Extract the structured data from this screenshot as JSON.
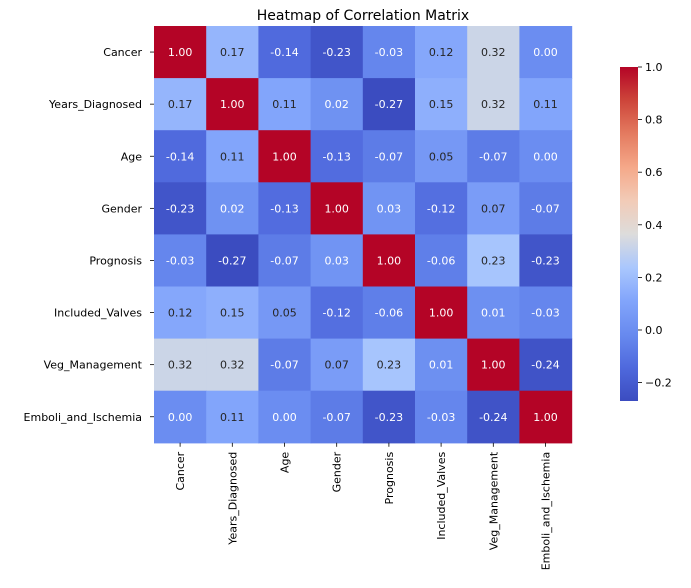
{
  "chart_data": {
    "type": "heatmap",
    "title": "Heatmap of Correlation Matrix",
    "xlabel": "",
    "ylabel": "",
    "labels": [
      "Cancer",
      "Years_Diagnosed",
      "Age",
      "Gender",
      "Prognosis",
      "Included_Valves",
      "Veg_Management",
      "Emboli_and_Ischemia"
    ],
    "matrix": [
      [
        1.0,
        0.17,
        -0.14,
        -0.23,
        -0.03,
        0.12,
        0.32,
        -0.0
      ],
      [
        0.17,
        1.0,
        0.11,
        0.02,
        -0.27,
        0.15,
        0.32,
        0.11
      ],
      [
        -0.14,
        0.11,
        1.0,
        -0.13,
        -0.07,
        0.05,
        -0.07,
        -0.0
      ],
      [
        -0.23,
        0.02,
        -0.13,
        1.0,
        0.03,
        -0.12,
        0.07,
        -0.07
      ],
      [
        -0.03,
        -0.27,
        -0.07,
        0.03,
        1.0,
        -0.06,
        0.23,
        -0.23
      ],
      [
        0.12,
        0.15,
        0.05,
        -0.12,
        -0.06,
        1.0,
        0.01,
        -0.03
      ],
      [
        0.32,
        0.32,
        -0.07,
        0.07,
        0.23,
        0.01,
        1.0,
        -0.24
      ],
      [
        -0.0,
        0.11,
        -0.0,
        -0.07,
        -0.23,
        -0.03,
        -0.24,
        1.0
      ]
    ],
    "colormap": "coolwarm",
    "value_range": [
      -0.27,
      1.0
    ],
    "colorbar_ticks": [
      "1.0",
      "0.8",
      "0.6",
      "0.4",
      "0.2",
      "0.0",
      "−0.2"
    ],
    "annotation_format": "2 decimals"
  }
}
